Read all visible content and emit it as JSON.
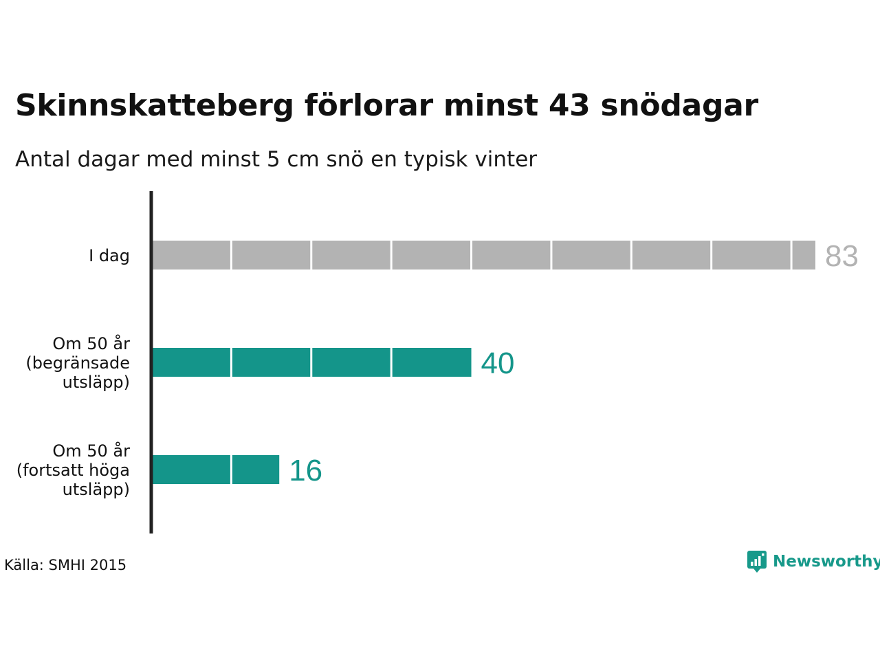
{
  "header": {
    "title": "Skinnskatteberg förlorar minst 43 snödagar",
    "subtitle": "Antal dagar med minst 5 cm snö en typisk vinter"
  },
  "footer": {
    "source": "Källa: SMHI 2015",
    "brand": "Newsworthy",
    "brand_icon": "newsworthy-logo-icon"
  },
  "colors": {
    "today": "#b3b3b3",
    "future": "#14958a",
    "axis": "#222222"
  },
  "chart_data": {
    "type": "bar",
    "orientation": "horizontal",
    "categories": [
      [
        "I dag"
      ],
      [
        "Om 50 år",
        "(begränsade",
        "utsläpp)"
      ],
      [
        "Om 50 år",
        "(fortsatt höga",
        "utsläpp)"
      ]
    ],
    "values": [
      83,
      40,
      16
    ],
    "value_labels": [
      "83",
      "40",
      "16"
    ],
    "bar_colors": [
      "#b3b3b3",
      "#14958a",
      "#14958a"
    ],
    "segment_size": 10,
    "xlim": [
      0,
      83
    ],
    "grid": false
  }
}
